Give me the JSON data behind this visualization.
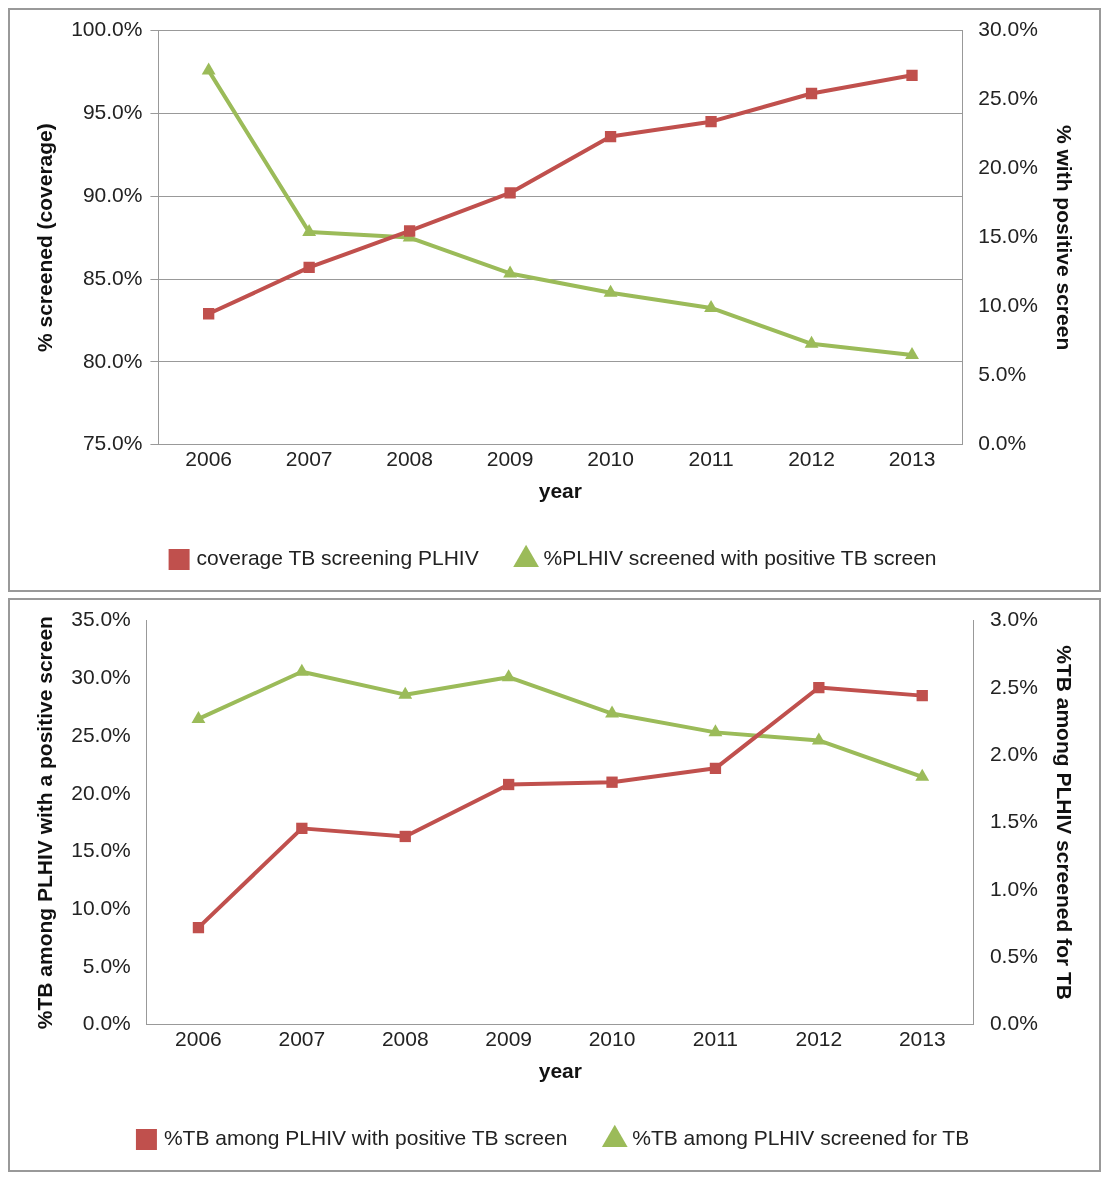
{
  "chart_data": [
    {
      "type": "line",
      "categories": [
        "2006",
        "2007",
        "2008",
        "2009",
        "2010",
        "2011",
        "2012",
        "2013"
      ],
      "xlabel": "year",
      "ylabel": "% screened (coverage)",
      "y2label": "% with positive screen",
      "ylim": [
        75,
        100
      ],
      "yticks": [
        {
          "value": 75,
          "label": "75.0%"
        },
        {
          "value": 80,
          "label": "80.0%"
        },
        {
          "value": 85,
          "label": "85.0%"
        },
        {
          "value": 90,
          "label": "90.0%"
        },
        {
          "value": 95,
          "label": "95.0%"
        },
        {
          "value": 100,
          "label": "100.0%"
        }
      ],
      "y2lim": [
        0,
        30
      ],
      "y2ticks": [
        {
          "value": 0,
          "label": "0.0%"
        },
        {
          "value": 5,
          "label": "5.0%"
        },
        {
          "value": 10,
          "label": "10.0%"
        },
        {
          "value": 15,
          "label": "15.0%"
        },
        {
          "value": 20,
          "label": "20.0%"
        },
        {
          "value": 25,
          "label": "25.0%"
        },
        {
          "value": 30,
          "label": "30.0%"
        }
      ],
      "grid": "y",
      "legend": "bottom",
      "line_style": "solid",
      "series": [
        {
          "name": "coverage TB screening PLHIV",
          "color": "#c0504d",
          "marker": "square",
          "values": [
            82.9,
            85.7,
            87.9,
            90.2,
            93.6,
            94.5,
            96.2,
            97.3
          ]
        },
        {
          "name": "%PLHIV screened with positive TB screen",
          "color": "#9bbb59",
          "marker": "triangle",
          "axis": "y2",
          "values": [
            27.1,
            15.4,
            15.0,
            12.4,
            11.0,
            9.9,
            7.3,
            6.5
          ]
        }
      ]
    },
    {
      "type": "line",
      "categories": [
        "2006",
        "2007",
        "2008",
        "2009",
        "2010",
        "2011",
        "2012",
        "2013"
      ],
      "xlabel": "year",
      "ylabel": "%TB among PLHIV with a positive screen",
      "y2label": "%TB among PLHIV screened for TB",
      "ylim": [
        0,
        35
      ],
      "yticks": [
        {
          "value": 0,
          "label": "0.0%"
        },
        {
          "value": 5,
          "label": "5.0%"
        },
        {
          "value": 10,
          "label": "10.0%"
        },
        {
          "value": 15,
          "label": "15.0%"
        },
        {
          "value": 20,
          "label": "20.0%"
        },
        {
          "value": 25,
          "label": "25.0%"
        },
        {
          "value": 30,
          "label": "30.0%"
        },
        {
          "value": 35,
          "label": "35.0%"
        }
      ],
      "y2lim": [
        0,
        3
      ],
      "y2ticks": [
        {
          "value": 0,
          "label": "0.0%"
        },
        {
          "value": 0.5,
          "label": "0.5%"
        },
        {
          "value": 1,
          "label": "1.0%"
        },
        {
          "value": 1.5,
          "label": "1.5%"
        },
        {
          "value": 2,
          "label": "2.0%"
        },
        {
          "value": 2.5,
          "label": "2.5%"
        },
        {
          "value": 3,
          "label": "3.0%"
        }
      ],
      "grid": false,
      "legend": "bottom",
      "line_style": "solid",
      "series": [
        {
          "name": "%TB among PLHIV with positive TB screen",
          "color": "#c0504d",
          "marker": "square",
          "values": [
            8.4,
            17.0,
            16.3,
            20.8,
            21.0,
            22.2,
            29.2,
            28.5
          ]
        },
        {
          "name": "%TB among PLHIV screened for TB",
          "color": "#9bbb59",
          "marker": "triangle",
          "axis": "y2",
          "values": [
            2.27,
            2.62,
            2.45,
            2.58,
            2.31,
            2.17,
            2.11,
            1.84
          ]
        }
      ]
    }
  ]
}
